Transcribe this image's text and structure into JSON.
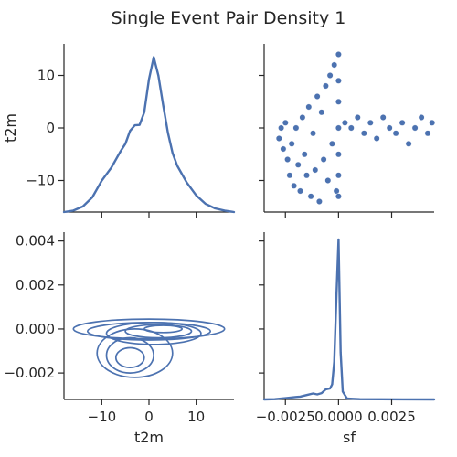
{
  "chart_data": {
    "type": "pairplot",
    "title": "Single Event Pair Density 1",
    "variables": [
      "t2m",
      "sf"
    ],
    "color": "#4c72b0",
    "panels": [
      {
        "id": "t2m-t2m",
        "type": "kde-1d",
        "variable": "t2m",
        "xlim": [
          -18,
          18
        ],
        "ylabel": "t2m",
        "yticks": [
          10,
          0,
          -10
        ],
        "ylim": [
          -16,
          16
        ],
        "curve_x": [
          -18,
          -16,
          -14,
          -12,
          -10,
          -8,
          -6,
          -5,
          -4,
          -3,
          -2,
          -1,
          0,
          1,
          2,
          3,
          4,
          5,
          6,
          8,
          10,
          12,
          14,
          16,
          18
        ],
        "curve_density": [
          0.0,
          0.004,
          0.015,
          0.04,
          0.085,
          0.12,
          0.165,
          0.185,
          0.22,
          0.235,
          0.236,
          0.27,
          0.36,
          0.42,
          0.37,
          0.29,
          0.215,
          0.16,
          0.125,
          0.08,
          0.045,
          0.022,
          0.01,
          0.004,
          0.0
        ]
      },
      {
        "id": "sf-t2m",
        "type": "scatter",
        "xvar": "sf",
        "yvar": "t2m",
        "xlim": [
          -0.0035,
          0.0045
        ],
        "ylim": [
          -16,
          16
        ],
        "xticks": [
          -0.0025,
          0.0,
          0.0025
        ],
        "yticks": [
          10,
          0,
          -10
        ],
        "points": [
          [
            -0.0028,
            -2
          ],
          [
            -0.0027,
            0
          ],
          [
            -0.0026,
            -4
          ],
          [
            -0.0025,
            1
          ],
          [
            -0.0024,
            -6
          ],
          [
            -0.0023,
            -9
          ],
          [
            -0.0022,
            -3
          ],
          [
            -0.0021,
            -11
          ],
          [
            -0.002,
            0
          ],
          [
            -0.0019,
            -7
          ],
          [
            -0.0018,
            -12
          ],
          [
            -0.0017,
            2
          ],
          [
            -0.0016,
            -5
          ],
          [
            -0.0015,
            -9
          ],
          [
            -0.0014,
            4
          ],
          [
            -0.0013,
            -13
          ],
          [
            -0.0012,
            -1
          ],
          [
            -0.0011,
            -8
          ],
          [
            -0.001,
            6
          ],
          [
            -0.0009,
            -14
          ],
          [
            -0.0008,
            3
          ],
          [
            -0.0007,
            -6
          ],
          [
            -0.0006,
            8
          ],
          [
            -0.0005,
            -10
          ],
          [
            -0.0004,
            10
          ],
          [
            -0.0003,
            -3
          ],
          [
            -0.0002,
            12
          ],
          [
            -0.0001,
            -12
          ],
          [
            0.0,
            14
          ],
          [
            0.0,
            -13
          ],
          [
            0.0,
            5
          ],
          [
            0.0,
            -5
          ],
          [
            0.0,
            9
          ],
          [
            0.0,
            -9
          ],
          [
            0.0,
            0
          ],
          [
            0.0003,
            1
          ],
          [
            0.0006,
            0
          ],
          [
            0.0009,
            2
          ],
          [
            0.0012,
            -1
          ],
          [
            0.0015,
            1
          ],
          [
            0.0018,
            -2
          ],
          [
            0.0021,
            2
          ],
          [
            0.0024,
            0
          ],
          [
            0.0027,
            -1
          ],
          [
            0.003,
            1
          ],
          [
            0.0033,
            -3
          ],
          [
            0.0036,
            0
          ],
          [
            0.0039,
            2
          ],
          [
            0.0042,
            -1
          ],
          [
            0.0044,
            1
          ]
        ]
      },
      {
        "id": "t2m-sf",
        "type": "kde-2d",
        "xvar": "t2m",
        "yvar": "sf",
        "xlim": [
          -18,
          18
        ],
        "ylim": [
          -0.0032,
          0.0044
        ],
        "xticks": [
          -10,
          0,
          10
        ],
        "yticks": [
          0.004,
          0.002,
          0.0,
          -0.002
        ],
        "xlabel": "t2m",
        "contours": [
          {
            "cx": 0,
            "cy": 0.0,
            "rx": 16,
            "ry": 0.00045
          },
          {
            "cx": 0,
            "cy": -0.0001,
            "rx": 13,
            "ry": 0.0004
          },
          {
            "cx": 1,
            "cy": -0.0002,
            "rx": 10,
            "ry": 0.0005
          },
          {
            "cx": 2,
            "cy": -0.0001,
            "rx": 7,
            "ry": 0.0003
          },
          {
            "cx": 3,
            "cy": 0.0,
            "rx": 4,
            "ry": 0.00016
          },
          {
            "cx": -3,
            "cy": -0.0011,
            "rx": 8,
            "ry": 0.0011
          },
          {
            "cx": -4,
            "cy": -0.0012,
            "rx": 5,
            "ry": 0.0008
          },
          {
            "cx": -4,
            "cy": -0.0013,
            "rx": 3,
            "ry": 0.00045
          }
        ]
      },
      {
        "id": "sf-sf",
        "type": "kde-1d",
        "variable": "sf",
        "xlim": [
          -0.0035,
          0.0045
        ],
        "xticks": [
          -0.0025,
          0.0,
          0.0025
        ],
        "xticklabels": [
          "−0.0025",
          "0.0000",
          "0.0025"
        ],
        "xlabel": "sf",
        "curve_x": [
          -0.0035,
          -0.003,
          -0.0025,
          -0.002,
          -0.0018,
          -0.0015,
          -0.0012,
          -0.001,
          -0.0008,
          -0.0006,
          -0.0004,
          -0.0003,
          -0.0002,
          -0.0001,
          0.0,
          0.0001,
          0.0002,
          0.0004,
          0.001,
          0.002,
          0.003,
          0.0045
        ],
        "curve_density": [
          0.0,
          0.01,
          0.04,
          0.08,
          0.09,
          0.14,
          0.19,
          0.16,
          0.2,
          0.32,
          0.35,
          0.48,
          1.2,
          3.3,
          5.1,
          1.5,
          0.25,
          0.03,
          0.01,
          0.005,
          0.002,
          0.0
        ]
      }
    ]
  }
}
